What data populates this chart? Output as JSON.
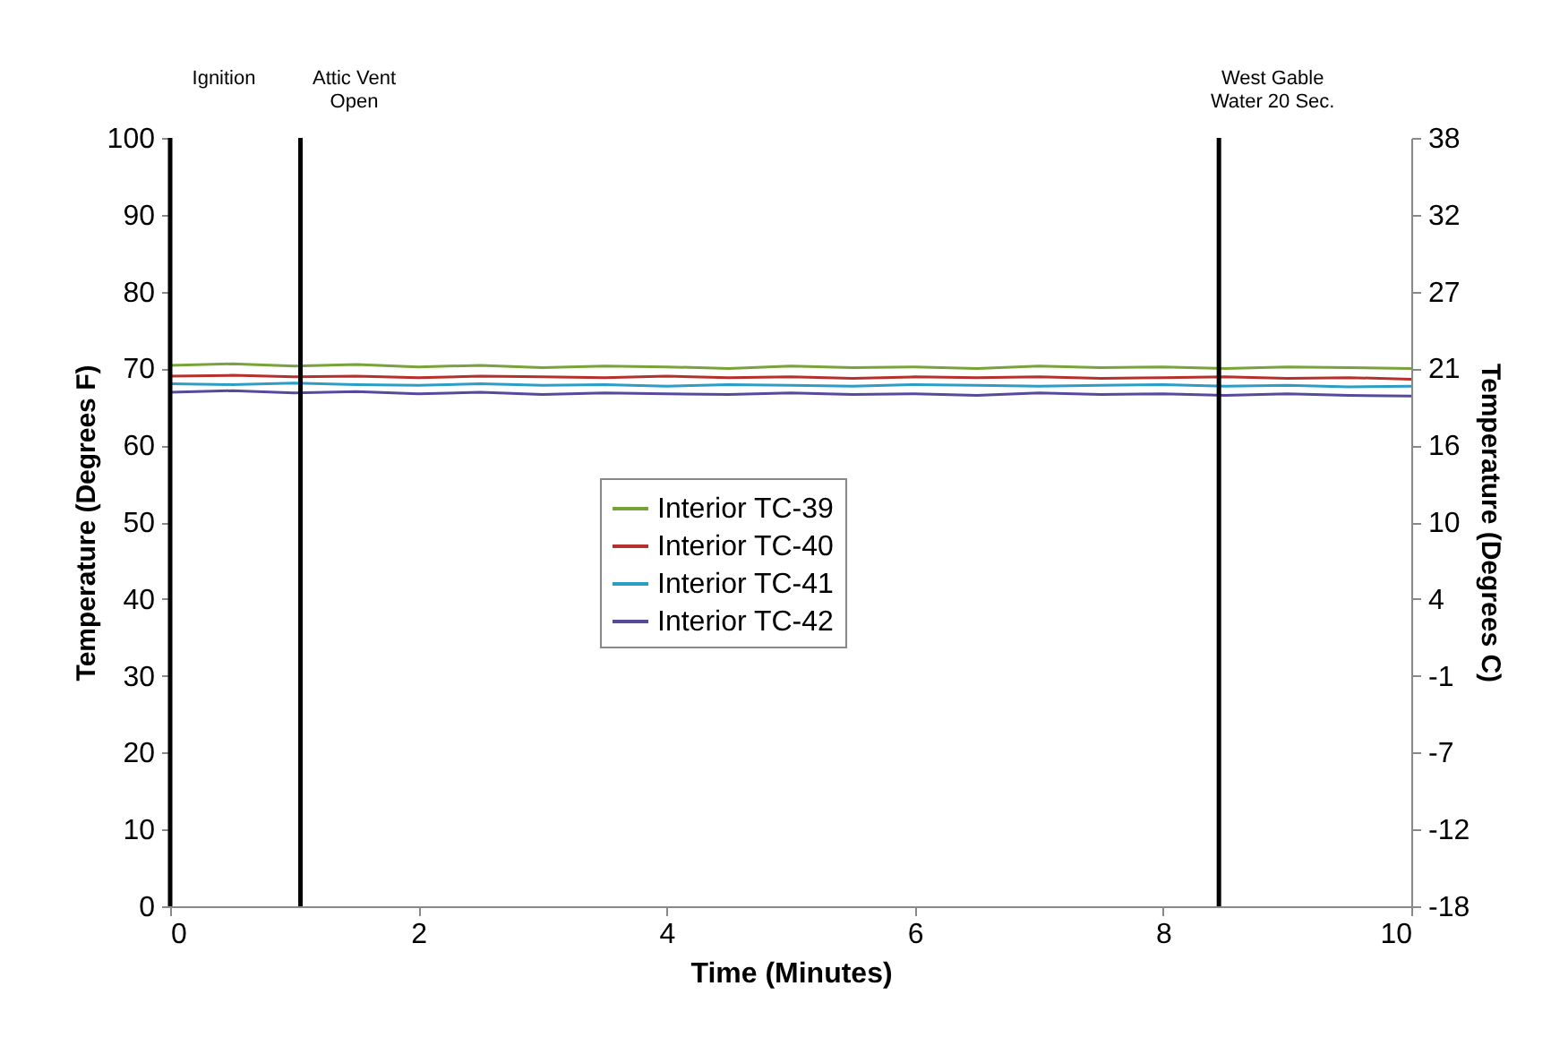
{
  "chart_data": {
    "type": "line",
    "xlabel": "Time (Minutes)",
    "ylabel": "Temperature (Degrees F)",
    "y2label": "Temperature (Degrees C)",
    "x": [
      0,
      0.5,
      1,
      1.5,
      2,
      2.5,
      3,
      3.5,
      4,
      4.5,
      5,
      5.5,
      6,
      6.5,
      7,
      7.5,
      8,
      8.5,
      9,
      9.5,
      10
    ],
    "series": [
      {
        "name": "Interior TC-39",
        "color": "#77a33a",
        "values": [
          70.4,
          70.6,
          70.3,
          70.5,
          70.2,
          70.4,
          70.1,
          70.3,
          70.2,
          70.0,
          70.3,
          70.1,
          70.2,
          70.0,
          70.3,
          70.1,
          70.2,
          70.0,
          70.2,
          70.1,
          70.0
        ]
      },
      {
        "name": "Interior TC-40",
        "color": "#b7312c",
        "values": [
          69.0,
          69.1,
          68.9,
          69.0,
          68.8,
          69.0,
          68.9,
          68.8,
          69.0,
          68.8,
          68.9,
          68.7,
          68.9,
          68.8,
          68.9,
          68.7,
          68.8,
          68.9,
          68.7,
          68.8,
          68.6
        ]
      },
      {
        "name": "Interior TC-41",
        "color": "#2c9ec6",
        "values": [
          68.0,
          67.9,
          68.1,
          67.9,
          67.8,
          68.0,
          67.8,
          67.9,
          67.7,
          67.9,
          67.8,
          67.7,
          67.9,
          67.8,
          67.7,
          67.8,
          67.9,
          67.7,
          67.8,
          67.6,
          67.7
        ]
      },
      {
        "name": "Interior TC-42",
        "color": "#574a9c",
        "values": [
          66.9,
          67.1,
          66.8,
          67.0,
          66.7,
          66.9,
          66.6,
          66.8,
          66.7,
          66.6,
          66.8,
          66.6,
          66.7,
          66.5,
          66.8,
          66.6,
          66.7,
          66.5,
          66.7,
          66.5,
          66.4
        ]
      }
    ],
    "xlim": [
      0,
      10
    ],
    "xticks": [
      0,
      2,
      4,
      6,
      8,
      10
    ],
    "ylim": [
      0,
      100
    ],
    "yticks": [
      0,
      10,
      20,
      30,
      40,
      50,
      60,
      70,
      80,
      90,
      100
    ],
    "y2lim": [
      -17.78,
      37.78
    ],
    "y2ticks": [
      {
        "value": -17.78,
        "label": "-18"
      },
      {
        "value": -12.22,
        "label": "-12"
      },
      {
        "value": -6.67,
        "label": "-7"
      },
      {
        "value": -1.11,
        "label": "-1"
      },
      {
        "value": 4.44,
        "label": "4"
      },
      {
        "value": 10,
        "label": "10"
      },
      {
        "value": 15.56,
        "label": "16"
      },
      {
        "value": 21.11,
        "label": "21"
      },
      {
        "value": 26.67,
        "label": "27"
      },
      {
        "value": 32.22,
        "label": "32"
      },
      {
        "value": 37.78,
        "label": "38"
      }
    ],
    "ref_lines": [
      {
        "axis": "x",
        "value": 0,
        "label": "Ignition",
        "color": "#000000"
      },
      {
        "axis": "x",
        "value": 1.05,
        "label": "Attic Vent\nOpen",
        "color": "#000000"
      },
      {
        "axis": "x",
        "value": 8.45,
        "label": "West Gable\nWater 20 Sec.",
        "color": "#000000"
      }
    ],
    "legend": "center",
    "grid": false
  }
}
